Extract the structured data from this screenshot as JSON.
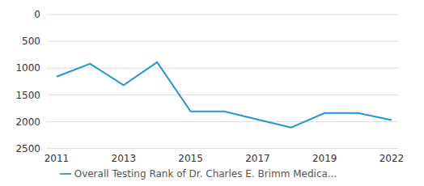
{
  "chart_data": {
    "type": "line",
    "categories": [
      "2011",
      null,
      "2013",
      null,
      "2015",
      null,
      "2017",
      null,
      "2019",
      null,
      "2022"
    ],
    "series": [
      {
        "name": "Overall Testing Rank of Dr. Charles E. Brimm Medica...",
        "color": "#2196d3",
        "values": [
          1160,
          920,
          1320,
          890,
          1810,
          1810,
          1960,
          2110,
          1840,
          1840,
          1970
        ]
      }
    ],
    "ylim": [
      2500,
      0
    ],
    "yticks": [
      0,
      500,
      1000,
      1500,
      2000,
      2500
    ],
    "grid": true,
    "legend": "bottom"
  }
}
